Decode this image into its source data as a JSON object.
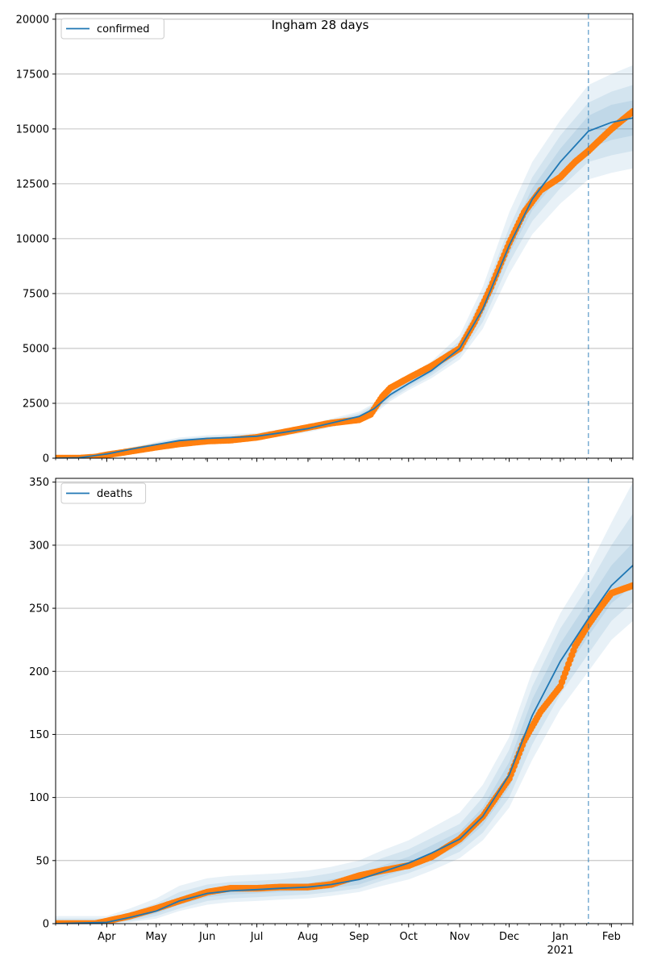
{
  "figure": {
    "title": "Ingham 28 days"
  },
  "colors": {
    "model_line": "#1f77b4",
    "band": "#1f77b4",
    "observed": "#ff7f0e",
    "grid": "#b0b0b0",
    "vline": "#1f77b4"
  },
  "chart_data": [
    {
      "type": "line",
      "title": "Ingham 28 days",
      "legend": {
        "label": "confirmed",
        "placement": "top-left"
      },
      "xlabel": "",
      "ylabel": "",
      "x_start": "2020-03-01",
      "x_end": "2021-02-14",
      "ylim": [
        0,
        20250
      ],
      "yticks": [
        0,
        2500,
        5000,
        7500,
        10000,
        12500,
        15000,
        17500,
        20000
      ],
      "ytick_labels": [
        "0",
        "2500",
        "5000",
        "7500",
        "10000",
        "12500",
        "15000",
        "17500",
        "20000"
      ],
      "grid": "horizontal",
      "forecast_start": "2021-01-18",
      "model": {
        "x": [
          "2020-03-01",
          "2020-03-15",
          "2020-04-01",
          "2020-04-15",
          "2020-05-01",
          "2020-05-15",
          "2020-06-01",
          "2020-06-15",
          "2020-07-01",
          "2020-07-15",
          "2020-08-01",
          "2020-08-15",
          "2020-09-01",
          "2020-09-10",
          "2020-09-20",
          "2020-10-01",
          "2020-10-15",
          "2020-11-01",
          "2020-11-15",
          "2020-12-01",
          "2020-12-15",
          "2021-01-01",
          "2021-01-18",
          "2021-02-01",
          "2021-02-14"
        ],
        "y": [
          0,
          20,
          190,
          400,
          620,
          800,
          900,
          940,
          1000,
          1150,
          1350,
          1600,
          1900,
          2250,
          2900,
          3400,
          4000,
          5000,
          6800,
          9700,
          11800,
          13500,
          14900,
          15300,
          15500
        ],
        "bands": [
          {
            "lower": [
              0,
              0,
              150,
              330,
              510,
              660,
              760,
              800,
              860,
              990,
              1180,
              1410,
              1700,
              2000,
              2600,
              3100,
              3650,
              4500,
              5900,
              8400,
              10200,
              11600,
              12700,
              13000,
              13200
            ],
            "upper": [
              0,
              40,
              240,
              480,
              740,
              940,
              1050,
              1090,
              1150,
              1320,
              1530,
              1800,
              2120,
              2500,
              3200,
              3750,
              4420,
              5600,
              7800,
              11200,
              13500,
              15400,
              17000,
              17500,
              17900
            ]
          },
          {
            "lower": [
              0,
              5,
              165,
              355,
              550,
              710,
              810,
              850,
              910,
              1050,
              1240,
              1470,
              1760,
              2080,
              2700,
              3200,
              3770,
              4680,
              6200,
              8900,
              10800,
              12300,
              13500,
              13800,
              14000
            ],
            "upper": [
              0,
              35,
              225,
              450,
              700,
              880,
              990,
              1030,
              1090,
              1250,
              1460,
              1730,
              2040,
              2420,
              3100,
              3620,
              4250,
              5350,
              7400,
              10500,
              12800,
              14700,
              16200,
              16700,
              17000
            ]
          },
          {
            "lower": [
              0,
              10,
              175,
              375,
              585,
              755,
              855,
              895,
              955,
              1100,
              1295,
              1535,
              1830,
              2170,
              2800,
              3300,
              3880,
              4830,
              6500,
              9300,
              11300,
              12900,
              14100,
              14500,
              14700
            ],
            "upper": [
              0,
              30,
              205,
              425,
              655,
              845,
              945,
              985,
              1045,
              1200,
              1405,
              1665,
              1970,
              2330,
              3000,
              3500,
              4120,
              5170,
              7100,
              10100,
              12300,
              14100,
              15600,
              16100,
              16300
            ]
          }
        ]
      },
      "observed": {
        "x": [
          "2020-03-01",
          "2020-03-15",
          "2020-03-25",
          "2020-04-01",
          "2020-04-10",
          "2020-04-20",
          "2020-05-01",
          "2020-05-15",
          "2020-06-01",
          "2020-06-15",
          "2020-07-01",
          "2020-07-15",
          "2020-08-01",
          "2020-08-15",
          "2020-09-01",
          "2020-09-08",
          "2020-09-15",
          "2020-09-20",
          "2020-10-01",
          "2020-10-15",
          "2020-11-01",
          "2020-11-10",
          "2020-11-20",
          "2020-12-01",
          "2020-12-10",
          "2020-12-20",
          "2021-01-01",
          "2021-01-10",
          "2021-01-18",
          "2021-01-25",
          "2021-02-01",
          "2021-02-14"
        ],
        "y": [
          0,
          0,
          50,
          150,
          250,
          370,
          500,
          650,
          780,
          820,
          950,
          1150,
          1400,
          1600,
          1750,
          2000,
          2800,
          3200,
          3650,
          4200,
          5000,
          6200,
          7800,
          9800,
          11200,
          12200,
          12800,
          13500,
          14000,
          14500,
          15000,
          15800
        ]
      }
    },
    {
      "type": "line",
      "legend": {
        "label": "deaths",
        "placement": "top-left"
      },
      "xlabel": "",
      "ylabel": "",
      "x_start": "2020-03-01",
      "x_end": "2021-02-14",
      "ylim": [
        0,
        353
      ],
      "yticks": [
        0,
        50,
        100,
        150,
        200,
        250,
        300,
        350
      ],
      "ytick_labels": [
        "0",
        "50",
        "100",
        "150",
        "200",
        "250",
        "300",
        "350"
      ],
      "grid": "horizontal",
      "forecast_start": "2021-01-18",
      "xtick_labels": [
        {
          "date": "2020-04-01",
          "label": "Apr"
        },
        {
          "date": "2020-05-01",
          "label": "May"
        },
        {
          "date": "2020-06-01",
          "label": "Jun"
        },
        {
          "date": "2020-07-01",
          "label": "Jul"
        },
        {
          "date": "2020-08-01",
          "label": "Aug"
        },
        {
          "date": "2020-09-01",
          "label": "Sep"
        },
        {
          "date": "2020-10-01",
          "label": "Oct"
        },
        {
          "date": "2020-11-01",
          "label": "Nov"
        },
        {
          "date": "2020-12-01",
          "label": "Dec"
        },
        {
          "date": "2021-01-01",
          "label": "Jan"
        },
        {
          "date": "2021-02-01",
          "label": "Feb"
        }
      ],
      "year_label": {
        "date": "2021-01-01",
        "label": "2021"
      },
      "model": {
        "x": [
          "2020-03-01",
          "2020-04-01",
          "2020-04-15",
          "2020-05-01",
          "2020-05-15",
          "2020-06-01",
          "2020-06-15",
          "2020-07-01",
          "2020-07-15",
          "2020-08-01",
          "2020-08-15",
          "2020-09-01",
          "2020-09-15",
          "2020-10-01",
          "2020-10-15",
          "2020-11-01",
          "2020-11-15",
          "2020-12-01",
          "2020-12-15",
          "2021-01-01",
          "2021-01-18",
          "2021-02-01",
          "2021-02-14"
        ],
        "y": [
          0,
          1,
          5,
          10,
          18,
          24,
          26,
          27,
          28,
          29,
          31,
          35,
          41,
          48,
          56,
          67,
          85,
          118,
          165,
          208,
          242,
          268,
          284
        ],
        "bands": [
          {
            "lower": [
              0,
              0,
              1,
              4,
              10,
              15,
              17,
              18,
              19,
              20,
              22,
              25,
              30,
              35,
              42,
              52,
              66,
              92,
              130,
              170,
              200,
              225,
              240
            ],
            "upper": [
              6,
              6,
              12,
              20,
              30,
              36,
              38,
              39,
              40,
              42,
              45,
              50,
              58,
              66,
              76,
              88,
              110,
              148,
              200,
              246,
              282,
              318,
              350
            ]
          },
          {
            "lower": [
              0,
              0,
              2,
              6,
              12,
              18,
              20,
              21,
              22,
              23,
              25,
              28,
              34,
              40,
              47,
              57,
              72,
              100,
              142,
              182,
              214,
              240,
              255
            ],
            "upper": [
              4,
              4,
              9,
              16,
              25,
              31,
              33,
              34,
              35,
              37,
              40,
              45,
              52,
              59,
              68,
              79,
              100,
              138,
              188,
              234,
              268,
              300,
              325
            ]
          },
          {
            "lower": [
              0,
              0,
              3,
              8,
              15,
              21,
              23,
              24,
              25,
              26,
              28,
              31,
              37,
              44,
              51,
              62,
              78,
              108,
              152,
              194,
              228,
              254,
              268
            ],
            "upper": [
              2,
              2,
              7,
              13,
              21,
              27,
              29,
              30,
              31,
              32,
              35,
              39,
              46,
              53,
              62,
              73,
              92,
              128,
              178,
              222,
              256,
              284,
              302
            ]
          }
        ]
      },
      "observed": {
        "x": [
          "2020-03-01",
          "2020-03-25",
          "2020-04-01",
          "2020-04-15",
          "2020-05-01",
          "2020-05-15",
          "2020-06-01",
          "2020-06-15",
          "2020-07-01",
          "2020-07-15",
          "2020-08-01",
          "2020-08-15",
          "2020-09-01",
          "2020-09-15",
          "2020-10-01",
          "2020-10-15",
          "2020-11-01",
          "2020-11-15",
          "2020-12-01",
          "2020-12-10",
          "2020-12-20",
          "2021-01-01",
          "2021-01-10",
          "2021-01-18",
          "2021-01-25",
          "2021-02-01",
          "2021-02-14"
        ],
        "y": [
          0,
          0,
          2,
          6,
          12,
          18,
          25,
          28,
          28,
          29,
          29,
          31,
          38,
          42,
          46,
          53,
          67,
          85,
          115,
          145,
          168,
          188,
          220,
          237,
          250,
          262,
          268
        ]
      }
    }
  ]
}
